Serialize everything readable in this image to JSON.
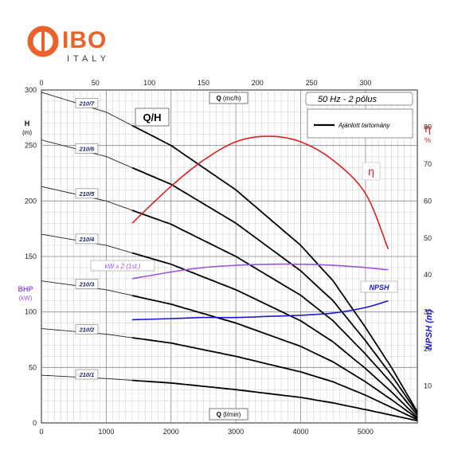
{
  "logo": {
    "brand": "IBO",
    "sub": "ITALY",
    "colors": {
      "orange": "#e8622a",
      "dark": "#3a3a3a"
    }
  },
  "chart_data": {
    "type": "line",
    "title": "Q/H",
    "info_box": "50 Hz - 2 pólus",
    "legend_line": "Ajánlott tartomány",
    "grid": true,
    "x_bottom": {
      "label": "Q",
      "unit": "(l/min)",
      "range": [
        0,
        5800
      ],
      "ticks": [
        0,
        1000,
        2000,
        3000,
        4000,
        5000
      ]
    },
    "x_top": {
      "label": "Q",
      "unit": "(mc/h)",
      "range": [
        0,
        348
      ],
      "ticks": [
        0,
        50,
        100,
        150,
        200,
        250,
        300
      ]
    },
    "y_left": {
      "label": "H",
      "unit": "(m)",
      "range": [
        0,
        300
      ],
      "ticks": [
        0,
        50,
        100,
        150,
        200,
        250,
        300
      ]
    },
    "y_right_eff": {
      "label": "η",
      "unit": "%",
      "range": [
        0,
        90
      ],
      "ticks": [
        10,
        20,
        30,
        40,
        50,
        60,
        70,
        80
      ]
    },
    "y_right_npsh_label": "NPSH (m)",
    "y_left_bhp": {
      "label": "BHP",
      "unit": "(kW)"
    },
    "pump_curves": [
      {
        "name": "210/7",
        "q": [
          0,
          1000,
          2000,
          3000,
          4000,
          4500,
          5000,
          5400,
          5800
        ],
        "h": [
          298,
          280,
          250,
          210,
          160,
          128,
          86,
          50,
          10
        ]
      },
      {
        "name": "210/6",
        "q": [
          0,
          1000,
          2000,
          3000,
          4000,
          4500,
          5000,
          5400,
          5800
        ],
        "h": [
          255,
          240,
          215,
          180,
          137,
          110,
          74,
          43,
          9
        ]
      },
      {
        "name": "210/5",
        "q": [
          0,
          1000,
          2000,
          3000,
          4000,
          4500,
          5000,
          5400,
          5800
        ],
        "h": [
          213,
          200,
          179,
          150,
          115,
          92,
          62,
          36,
          7
        ]
      },
      {
        "name": "210/4",
        "q": [
          0,
          1000,
          2000,
          3000,
          4000,
          4500,
          5000,
          5400,
          5800
        ],
        "h": [
          170,
          160,
          143,
          120,
          92,
          73,
          49,
          28,
          5
        ]
      },
      {
        "name": "210/3",
        "q": [
          0,
          1000,
          2000,
          3000,
          4000,
          4500,
          5000,
          5400,
          5800
        ],
        "h": [
          128,
          120,
          107,
          90,
          69,
          55,
          37,
          21,
          4
        ]
      },
      {
        "name": "210/2",
        "q": [
          0,
          1000,
          2000,
          3000,
          4000,
          4500,
          5000,
          5400,
          5800
        ],
        "h": [
          85,
          80,
          72,
          60,
          46,
          37,
          25,
          14,
          3
        ]
      },
      {
        "name": "210/1",
        "q": [
          0,
          1000,
          2000,
          3000,
          4000,
          4500,
          5000,
          5400,
          5800
        ],
        "h": [
          43,
          40,
          36,
          30,
          23,
          18,
          12,
          7,
          2
        ]
      }
    ],
    "efficiency": {
      "name": "η",
      "color": "#e02020",
      "q": [
        1400,
        2000,
        2500,
        3000,
        3500,
        4000,
        4500,
        5000,
        5350
      ],
      "eta": [
        54,
        64,
        71,
        76,
        77.5,
        76,
        71,
        62,
        47
      ]
    },
    "power": {
      "name": "kW x 2 (1st.)",
      "color": "#9b55e0",
      "q": [
        1400,
        2000,
        2500,
        3000,
        3500,
        4000,
        4500,
        5000,
        5350
      ],
      "h": [
        130,
        136,
        140,
        142,
        143,
        143,
        142,
        140,
        138
      ]
    },
    "npsh": {
      "name": "NPSH",
      "color": "#1a1ad0",
      "q": [
        1400,
        2000,
        2500,
        3000,
        3500,
        4000,
        4500,
        5000,
        5350
      ],
      "h": [
        93,
        94,
        95,
        95,
        96,
        97,
        99,
        104,
        110
      ]
    }
  }
}
